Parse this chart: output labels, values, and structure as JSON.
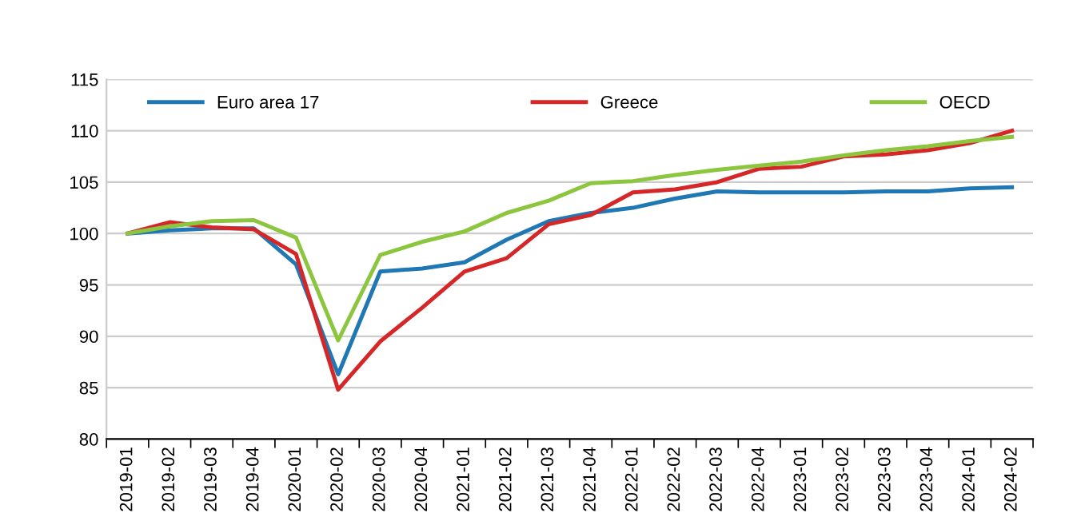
{
  "chart_data": {
    "type": "line",
    "categories": [
      "2019-01",
      "2019-02",
      "2019-03",
      "2019-04",
      "2020-01",
      "2020-02",
      "2020-03",
      "2020-04",
      "2021-01",
      "2021-02",
      "2021-03",
      "2021-04",
      "2022-01",
      "2022-02",
      "2022-03",
      "2022-04",
      "2023-01",
      "2023-02",
      "2023-03",
      "2023-04",
      "2024-01",
      "2024-02"
    ],
    "series": [
      {
        "name": "Euro area 17",
        "color": "#1f77b4",
        "values": [
          100,
          100.3,
          100.5,
          100.5,
          97,
          86.3,
          96.3,
          96.6,
          97.2,
          99.4,
          101.2,
          102,
          102.5,
          103.4,
          104.1,
          104,
          104,
          104,
          104.1,
          104.1,
          104.4,
          104.5
        ]
      },
      {
        "name": "Greece",
        "color": "#d62728",
        "values": [
          100,
          101.1,
          100.6,
          100.4,
          98,
          84.8,
          89.5,
          92.8,
          96.3,
          97.6,
          100.9,
          101.8,
          104,
          104.3,
          105,
          106.3,
          106.5,
          107.5,
          107.7,
          108.1,
          108.8,
          110
        ]
      },
      {
        "name": "OECD",
        "color": "#8cc63f",
        "values": [
          100,
          100.7,
          101.2,
          101.3,
          99.6,
          89.6,
          97.9,
          99.2,
          100.2,
          102,
          103.2,
          104.9,
          105.1,
          105.7,
          106.2,
          106.6,
          107,
          107.6,
          108.1,
          108.5,
          109,
          109.4
        ]
      }
    ],
    "ylim": [
      80,
      115
    ],
    "yticks": [
      80,
      85,
      90,
      95,
      100,
      105,
      110,
      115
    ],
    "grid": "y",
    "legend": "top",
    "marker": "none",
    "line_style": "solid"
  }
}
